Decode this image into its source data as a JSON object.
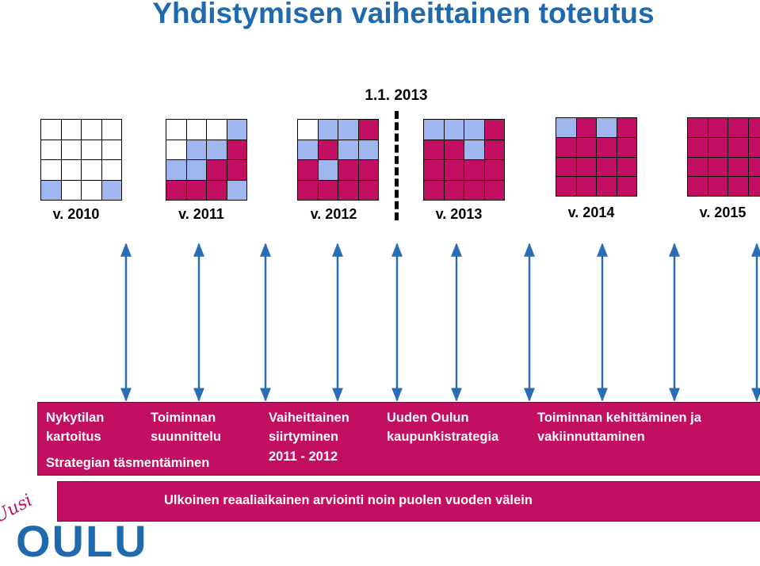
{
  "title": "Yhdistymisen vaiheittainen toteutus",
  "date_marker": "1.1. 2013",
  "colors": {
    "title": "#1f6aaf",
    "magenta": "#c30f61",
    "blue": "#9eb5ee",
    "white": "#ffffff"
  },
  "grids": [
    {
      "year": "v. 2010",
      "cells": [
        "w",
        "w",
        "w",
        "w",
        "w",
        "w",
        "w",
        "w",
        "w",
        "w",
        "w",
        "w",
        "b",
        "w",
        "w",
        "b"
      ]
    },
    {
      "year": "v. 2011",
      "cells": [
        "w",
        "w",
        "w",
        "b",
        "w",
        "b",
        "b",
        "m",
        "b",
        "b",
        "m",
        "m",
        "m",
        "m",
        "m",
        "b"
      ]
    },
    {
      "year": "v. 2012",
      "cells": [
        "w",
        "b",
        "b",
        "m",
        "b",
        "m",
        "b",
        "b",
        "m",
        "b",
        "m",
        "m",
        "m",
        "m",
        "m",
        "m"
      ]
    },
    {
      "year": "v. 2013",
      "cells": [
        "b",
        "b",
        "b",
        "m",
        "m",
        "m",
        "b",
        "m",
        "m",
        "m",
        "m",
        "m",
        "m",
        "m",
        "m",
        "m"
      ]
    },
    {
      "year": "v. 2014",
      "cells": [
        "b",
        "m",
        "b",
        "m",
        "m",
        "m",
        "m",
        "m",
        "m",
        "m",
        "m",
        "m",
        "m",
        "m",
        "m",
        "m"
      ]
    },
    {
      "year": "v. 2015",
      "cells": [
        "m",
        "m",
        "m",
        "m",
        "m",
        "m",
        "m",
        "m",
        "m",
        "m",
        "m",
        "m",
        "m",
        "m",
        "m",
        "m"
      ]
    }
  ],
  "band": {
    "col1": {
      "line1": "Nykytilan",
      "line2": "kartoitus",
      "line3": "Strategian täsmentäminen"
    },
    "col2": {
      "line1": "Toiminnan",
      "line2": "suunnittelu"
    },
    "col3": {
      "line1": "Vaiheittainen",
      "line2": "siirtyminen",
      "line3": "2011 - 2012"
    },
    "col4": {
      "line1": "Uuden Oulun",
      "line2": "kaupunkistrategia"
    },
    "col5": {
      "line1": "Toiminnan kehittäminen ja",
      "line2": "vakiinnuttaminen"
    }
  },
  "band2": {
    "text": "Ulkoinen reaaliaikainen arviointi noin puolen vuoden välein"
  },
  "logo": {
    "script": "Uusi",
    "word": "OULU"
  }
}
